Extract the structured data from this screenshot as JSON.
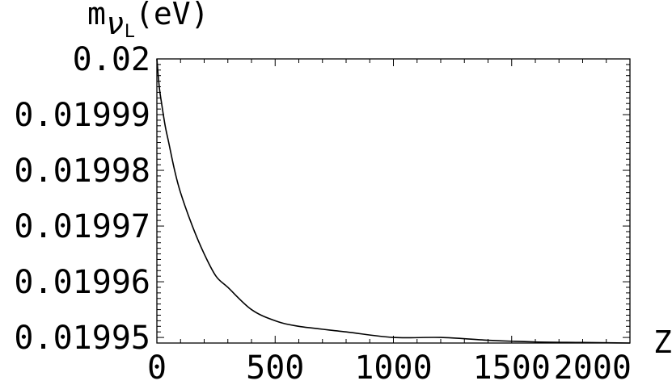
{
  "chart_data": {
    "type": "line",
    "title": "",
    "xlabel": "Z",
    "ylabel": {
      "base": "m",
      "subscript": "ν",
      "sub_subscript": "L",
      "unit": "(eV)"
    },
    "xlim": [
      0,
      2000
    ],
    "ylim": [
      0.019949,
      0.02
    ],
    "xticks": [
      0,
      500,
      1000,
      1500,
      2000
    ],
    "xtick_labels": [
      "0",
      "500",
      "1000",
      "1500",
      "2000"
    ],
    "yticks": [
      0.01995,
      0.01996,
      0.01997,
      0.01998,
      0.01999,
      0.02
    ],
    "ytick_labels": [
      "0.01995",
      "0.01996",
      "0.01997",
      "0.01998",
      "0.01999",
      "0.02"
    ],
    "grid": false,
    "legend": "none",
    "colors": {
      "line": "#000000",
      "frame": "#000000",
      "background": "#ffffff"
    },
    "series": [
      {
        "x": [
          0,
          10,
          20,
          35,
          50,
          75,
          100,
          150,
          200,
          250,
          300,
          400,
          500,
          600,
          800,
          1000,
          1200,
          1400,
          1600,
          1800,
          2000
        ],
        "y": [
          0.02,
          0.019995,
          0.019992,
          0.019988,
          0.019985,
          0.01998,
          0.019976,
          0.01997,
          0.019965,
          0.019961,
          0.019959,
          0.019955,
          0.019953,
          0.019952,
          0.019951,
          0.01995,
          0.01995,
          0.0199495,
          0.0199492,
          0.0199491,
          0.019949
        ]
      }
    ]
  }
}
